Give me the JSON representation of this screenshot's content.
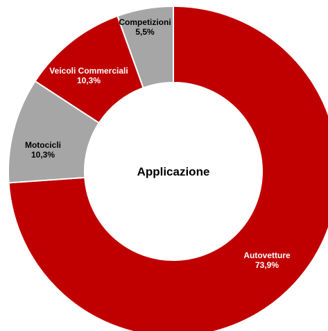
{
  "chart_data": {
    "type": "pie",
    "title": "Applicazione",
    "slices": [
      {
        "label": "Autovetture",
        "value": 73.9,
        "value_label": "73,9%",
        "color": "#c00000",
        "text_color": "#ffffff"
      },
      {
        "label": "Motocicli",
        "value": 10.3,
        "value_label": "10,3%",
        "color": "#a6a6a6",
        "text_color": "#000000"
      },
      {
        "label": "Veicoli Commerciali",
        "value": 10.3,
        "value_label": "10,3%",
        "color": "#c00000",
        "text_color": "#ffffff"
      },
      {
        "label": "Competizioni",
        "value": 5.5,
        "value_label": "5,5%",
        "color": "#a6a6a6",
        "text_color": "#000000"
      }
    ],
    "start_angle_deg": 0,
    "direction": "clockwise",
    "donut": true,
    "legend": "none"
  }
}
